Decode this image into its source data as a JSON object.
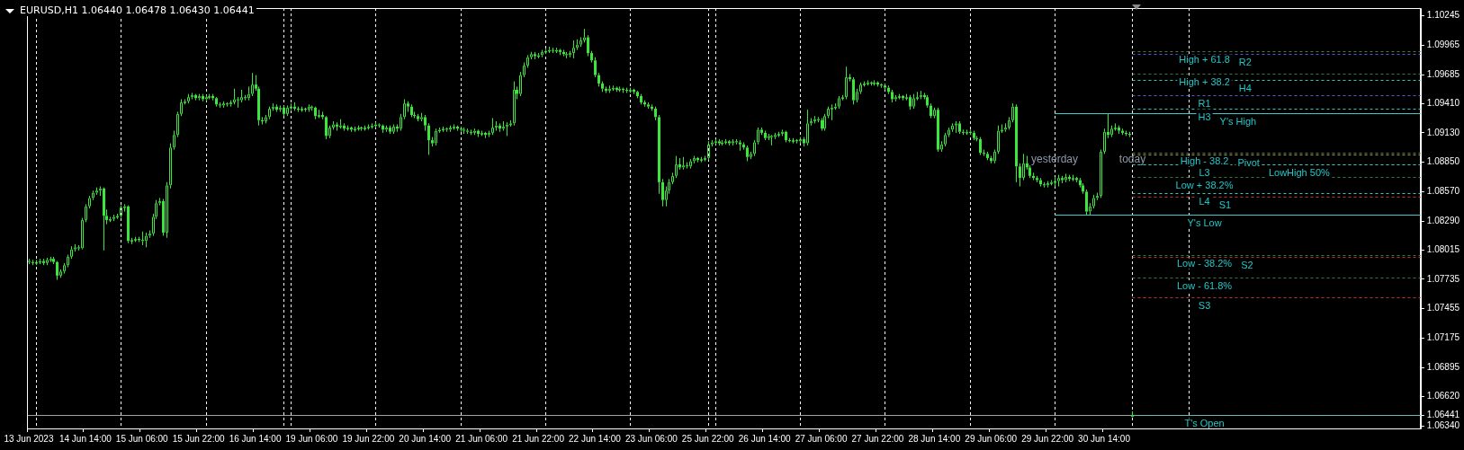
{
  "chart_data": {
    "type": "candlestick",
    "title": "EURUSD,H1 1.06440 1.06478 1.06430 1.06441",
    "color": "#3ce63c",
    "categories": [
      "13 Jun 2023",
      null,
      null,
      null,
      null,
      null,
      null,
      null,
      null,
      null,
      null,
      null,
      null,
      null,
      null,
      null,
      "14 Jun 14:00",
      null,
      null,
      null,
      null,
      null,
      null,
      null,
      null,
      null,
      null,
      null,
      null,
      null,
      null,
      null,
      "15 Jun 06:00",
      null,
      null,
      null,
      null,
      null,
      null,
      null,
      null,
      null,
      null,
      null,
      null,
      null,
      null,
      null,
      "15 Jun 22:00",
      null,
      null,
      null,
      null,
      null,
      null,
      null,
      null,
      null,
      null,
      null,
      null,
      null,
      null,
      null,
      "16 Jun 14:00",
      null,
      null,
      null,
      null,
      null,
      null,
      null,
      null,
      null,
      null,
      null,
      null,
      null,
      null,
      null,
      "19 Jun 06:00",
      null,
      null,
      null,
      null,
      null,
      null,
      null,
      null,
      null,
      null,
      null,
      null,
      null,
      null,
      null,
      "19 Jun 22:00",
      null,
      null,
      null,
      null,
      null,
      null,
      null,
      null,
      null,
      null,
      null,
      null,
      null,
      null,
      null,
      "20 Jun 14:00",
      null,
      null,
      null,
      null,
      null,
      null,
      null,
      null,
      null,
      null,
      null,
      null,
      null,
      null,
      null,
      "21 Jun 06:00",
      null,
      null,
      null,
      null,
      null,
      null,
      null,
      null,
      null,
      null,
      null,
      null,
      null,
      null,
      null,
      "21 Jun 22:00",
      null,
      null,
      null,
      null,
      null,
      null,
      null,
      null,
      null,
      null,
      null,
      null,
      null,
      null,
      null,
      "22 Jun 14:00",
      null,
      null,
      null,
      null,
      null,
      null,
      null,
      null,
      null,
      null,
      null,
      null,
      null,
      null,
      null,
      "23 Jun 06:00",
      null,
      null,
      null,
      null,
      null,
      null,
      null,
      null,
      null,
      null,
      null,
      null,
      null,
      null,
      null,
      "25 Jun 22:00",
      null,
      null,
      null,
      null,
      null,
      null,
      null,
      null,
      null,
      null,
      null,
      null,
      null,
      null,
      null,
      "26 Jun 14:00",
      null,
      null,
      null,
      null,
      null,
      null,
      null,
      null,
      null,
      null,
      null,
      null,
      null,
      null,
      null,
      "27 Jun 06:00",
      null,
      null,
      null,
      null,
      null,
      null,
      null,
      null,
      null,
      null,
      null,
      null,
      null,
      null,
      null,
      "27 Jun 22:00",
      null,
      null,
      null,
      null,
      null,
      null,
      null,
      null,
      null,
      null,
      null,
      null,
      null,
      null,
      null,
      "28 Jun 14:00",
      null,
      null,
      null,
      null,
      null,
      null,
      null,
      null,
      null,
      null,
      null,
      null,
      null,
      null,
      null,
      "29 Jun 06:00",
      null,
      null,
      null,
      null,
      null,
      null,
      null,
      null,
      null,
      null,
      null,
      null,
      null,
      null,
      null,
      "29 Jun 22:00",
      null,
      null,
      null,
      null,
      null,
      null,
      null,
      null,
      null,
      null,
      null,
      null,
      null,
      null,
      null,
      "30 Jun 14:00",
      null,
      null,
      null,
      null,
      null,
      null,
      null,
      null,
      null,
      null,
      null,
      null,
      null,
      null,
      null,
      null,
      null,
      null,
      null,
      null,
      null,
      null,
      null,
      null,
      null,
      null,
      null,
      null,
      null,
      null,
      null,
      null,
      null,
      null,
      null,
      null,
      null,
      null,
      null,
      null,
      null,
      null,
      null,
      null,
      null,
      null,
      null,
      null,
      null,
      null,
      null,
      null,
      null,
      null,
      null,
      null,
      null,
      null,
      null,
      null,
      null,
      null,
      null,
      null,
      null,
      null,
      null,
      null,
      null,
      null,
      null,
      null,
      null,
      null,
      null,
      null,
      null,
      null,
      null,
      null,
      null,
      null,
      null,
      null,
      null,
      null,
      null,
      null,
      null
    ],
    "ohlc": [
      [
        1.0791,
        1.0793,
        1.0788,
        1.079
      ],
      [
        1.079,
        1.0792,
        1.0787,
        1.0789
      ],
      [
        1.0789,
        1.0792,
        1.0787,
        1.079
      ],
      [
        1.079,
        1.0793,
        1.0788,
        1.0791
      ],
      [
        1.0791,
        1.0793,
        1.0787,
        1.0789
      ],
      [
        1.0789,
        1.0794,
        1.0787,
        1.0792
      ],
      [
        1.0792,
        1.0795,
        1.079,
        1.0793
      ],
      [
        1.0793,
        1.0795,
        1.0788,
        1.079
      ],
      [
        1.079,
        1.0791,
        1.0773,
        1.0777
      ],
      [
        1.0777,
        1.0783,
        1.0775,
        1.0781
      ],
      [
        1.0781,
        1.0789,
        1.0779,
        1.0787
      ],
      [
        1.0787,
        1.0797,
        1.0785,
        1.0795
      ],
      [
        1.0795,
        1.0805,
        1.0793,
        1.0802
      ],
      [
        1.0802,
        1.0807,
        1.08,
        1.0804
      ],
      [
        1.0804,
        1.0806,
        1.0801,
        1.0803
      ],
      [
        1.0803,
        1.0832,
        1.0802,
        1.083
      ],
      [
        1.083,
        1.0845,
        1.0828,
        1.0843
      ],
      [
        1.0843,
        1.0853,
        1.0841,
        1.0851
      ],
      [
        1.0851,
        1.0858,
        1.0849,
        1.0856
      ],
      [
        1.0856,
        1.0861,
        1.0854,
        1.0858
      ],
      [
        1.0858,
        1.0862,
        1.0853,
        1.086
      ],
      [
        1.086,
        1.0861,
        1.0801,
        1.0834
      ],
      [
        1.0834,
        1.084,
        1.0826,
        1.083
      ],
      [
        1.083,
        1.0833,
        1.0828,
        1.0831
      ],
      [
        1.0831,
        1.0835,
        1.0829,
        1.0833
      ],
      [
        1.0833,
        1.0836,
        1.0831,
        1.0834
      ],
      [
        1.0834,
        1.0844,
        1.0832,
        1.0842
      ],
      [
        1.0842,
        1.0845,
        1.0838,
        1.0843
      ],
      [
        1.0843,
        1.0844,
        1.0808,
        1.081
      ],
      [
        1.081,
        1.0813,
        1.0807,
        1.0811
      ],
      [
        1.0811,
        1.0814,
        1.0809,
        1.0812
      ],
      [
        1.0812,
        1.0814,
        1.0809,
        1.0811
      ],
      [
        1.0811,
        1.0819,
        1.0806,
        1.081
      ],
      [
        1.081,
        1.0818,
        1.0804,
        1.0815
      ],
      [
        1.0815,
        1.082,
        1.0813,
        1.0817
      ],
      [
        1.0817,
        1.0836,
        1.0815,
        1.0833
      ],
      [
        1.0833,
        1.0849,
        1.0831,
        1.0846
      ],
      [
        1.0846,
        1.0851,
        1.0844,
        1.0848
      ],
      [
        1.0848,
        1.085,
        1.0815,
        1.0818
      ],
      [
        1.0818,
        1.0866,
        1.0813,
        1.0863
      ],
      [
        1.0863,
        1.0903,
        1.086,
        1.0899
      ],
      [
        1.0899,
        1.0915,
        1.0897,
        1.0911
      ],
      [
        1.0911,
        1.0933,
        1.0909,
        1.0931
      ],
      [
        1.0931,
        1.0945,
        1.0929,
        1.0942
      ],
      [
        1.0942,
        1.0945,
        1.094,
        1.0943
      ],
      [
        1.0943,
        1.095,
        1.0941,
        1.0947
      ],
      [
        1.0947,
        1.0951,
        1.0945,
        1.0949
      ],
      [
        1.0949,
        1.095,
        1.0944,
        1.0946
      ],
      [
        1.0946,
        1.095,
        1.0944,
        1.0948
      ],
      [
        1.0948,
        1.095,
        1.0943,
        1.0945
      ],
      [
        1.0945,
        1.0949,
        1.0943,
        1.0947
      ],
      [
        1.0947,
        1.095,
        1.0945,
        1.0948
      ],
      [
        1.0948,
        1.095,
        1.0944,
        1.0946
      ],
      [
        1.0946,
        1.0947,
        1.0938,
        1.094
      ],
      [
        1.094,
        1.0942,
        1.0937,
        1.0939
      ],
      [
        1.0939,
        1.0943,
        1.0937,
        1.0941
      ],
      [
        1.0941,
        1.0942,
        1.0938,
        1.094
      ],
      [
        1.094,
        1.0944,
        1.0938,
        1.0942
      ],
      [
        1.0942,
        1.0955,
        1.094,
        1.0945
      ],
      [
        1.0945,
        1.0947,
        1.0937,
        1.0944
      ],
      [
        1.0944,
        1.0954,
        1.0942,
        1.0947
      ],
      [
        1.0947,
        1.0949,
        1.0944,
        1.0946
      ],
      [
        1.0946,
        1.0957,
        1.0944,
        1.095
      ],
      [
        1.095,
        1.097,
        1.0948,
        1.0959
      ],
      [
        1.0959,
        1.0968,
        1.0953,
        1.0955
      ],
      [
        1.0955,
        1.0957,
        1.092,
        1.0925
      ],
      [
        1.0925,
        1.0928,
        1.0921,
        1.0924
      ],
      [
        1.0924,
        1.093,
        1.0922,
        1.0928
      ],
      [
        1.0928,
        1.0938,
        1.0926,
        1.0936
      ],
      [
        1.0936,
        1.0941,
        1.0934,
        1.0938
      ],
      [
        1.0938,
        1.094,
        1.0933,
        1.0935
      ],
      [
        1.0935,
        1.0939,
        1.0933,
        1.0937
      ],
      [
        1.0937,
        1.0939,
        1.0929,
        1.0931
      ],
      [
        1.0931,
        1.0939,
        1.0929,
        1.0937
      ],
      [
        1.0937,
        1.0941,
        1.0935,
        1.0938
      ],
      [
        1.0938,
        1.0942,
        1.0934,
        1.0936
      ],
      [
        1.0936,
        1.0938,
        1.0933,
        1.0935
      ],
      [
        1.0935,
        1.0938,
        1.0933,
        1.0936
      ],
      [
        1.0936,
        1.0937,
        1.0933,
        1.0935
      ],
      [
        1.0935,
        1.094,
        1.0933,
        1.0938
      ],
      [
        1.0938,
        1.0939,
        1.0934,
        1.0937
      ],
      [
        1.0937,
        1.0938,
        1.0926,
        1.0929
      ],
      [
        1.0929,
        1.0935,
        1.0927,
        1.093
      ],
      [
        1.093,
        1.0933,
        1.0926,
        1.0928
      ],
      [
        1.0928,
        1.0929,
        1.0907,
        1.091
      ],
      [
        1.091,
        1.092,
        1.0908,
        1.0918
      ],
      [
        1.0918,
        1.0924,
        1.0916,
        1.0921
      ],
      [
        1.0921,
        1.0923,
        1.0915,
        1.0919
      ],
      [
        1.0919,
        1.0926,
        1.0917,
        1.092
      ],
      [
        1.092,
        1.0922,
        1.0915,
        1.0917
      ],
      [
        1.0917,
        1.092,
        1.0915,
        1.0918
      ],
      [
        1.0918,
        1.0919,
        1.0914,
        1.0916
      ],
      [
        1.0916,
        1.0919,
        1.0914,
        1.0917
      ],
      [
        1.0917,
        1.092,
        1.0915,
        1.0918
      ],
      [
        1.0918,
        1.0919,
        1.0915,
        1.0917
      ],
      [
        1.0917,
        1.092,
        1.0915,
        1.0918
      ],
      [
        1.0918,
        1.0921,
        1.0916,
        1.0919
      ],
      [
        1.0919,
        1.0922,
        1.0917,
        1.092
      ],
      [
        1.092,
        1.0923,
        1.0918,
        1.0921
      ],
      [
        1.0921,
        1.0922,
        1.0918,
        1.092
      ],
      [
        1.092,
        1.0921,
        1.0913,
        1.0916
      ],
      [
        1.0916,
        1.092,
        1.0914,
        1.0918
      ],
      [
        1.0918,
        1.092,
        1.0912,
        1.0914
      ],
      [
        1.0914,
        1.0921,
        1.0912,
        1.0919
      ],
      [
        1.0919,
        1.0921,
        1.0914,
        1.0917
      ],
      [
        1.0917,
        1.0931,
        1.0915,
        1.0928
      ],
      [
        1.0928,
        1.0945,
        1.0926,
        1.0941
      ],
      [
        1.0941,
        1.0943,
        1.0933,
        1.0938
      ],
      [
        1.0938,
        1.094,
        1.0928,
        1.093
      ],
      [
        1.093,
        1.0933,
        1.0927,
        1.0929
      ],
      [
        1.0929,
        1.0931,
        1.0924,
        1.0926
      ],
      [
        1.0926,
        1.0932,
        1.0924,
        1.0928
      ],
      [
        1.0928,
        1.093,
        1.0915,
        1.092
      ],
      [
        1.092,
        1.0922,
        1.0892,
        1.0906
      ],
      [
        1.0906,
        1.0909,
        1.09,
        1.0903
      ],
      [
        1.0903,
        1.0917,
        1.0901,
        1.0915
      ],
      [
        1.0915,
        1.0918,
        1.0913,
        1.0916
      ],
      [
        1.0916,
        1.0919,
        1.0914,
        1.0917
      ],
      [
        1.0917,
        1.0918,
        1.0914,
        1.0916
      ],
      [
        1.0916,
        1.092,
        1.0914,
        1.0918
      ],
      [
        1.0918,
        1.0921,
        1.0916,
        1.0919
      ],
      [
        1.0919,
        1.092,
        1.0915,
        1.0917
      ],
      [
        1.0917,
        1.0919,
        1.0914,
        1.0916
      ],
      [
        1.0916,
        1.0918,
        1.0912,
        1.0915
      ],
      [
        1.0915,
        1.0917,
        1.0912,
        1.0914
      ],
      [
        1.0914,
        1.0916,
        1.0911,
        1.0913
      ],
      [
        1.0913,
        1.0917,
        1.0911,
        1.0915
      ],
      [
        1.0915,
        1.0916,
        1.0909,
        1.0912
      ],
      [
        1.0912,
        1.0915,
        1.091,
        1.0913
      ],
      [
        1.0913,
        1.0914,
        1.0908,
        1.0911
      ],
      [
        1.0911,
        1.0915,
        1.0909,
        1.0913
      ],
      [
        1.0913,
        1.0927,
        1.0911,
        1.0918
      ],
      [
        1.0918,
        1.0924,
        1.0915,
        1.092
      ],
      [
        1.092,
        1.0922,
        1.0914,
        1.0917
      ],
      [
        1.0917,
        1.0924,
        1.0915,
        1.0919
      ],
      [
        1.0919,
        1.0923,
        1.091,
        1.0921
      ],
      [
        1.0921,
        1.0925,
        1.0919,
        1.0922
      ],
      [
        1.0922,
        1.0962,
        1.092,
        1.0954
      ],
      [
        1.0954,
        1.0957,
        1.0945,
        1.095
      ],
      [
        1.095,
        1.0971,
        1.0948,
        1.0968
      ],
      [
        1.0968,
        1.098,
        1.0966,
        1.0977
      ],
      [
        1.0977,
        1.0987,
        1.0975,
        1.0985
      ],
      [
        1.0985,
        1.099,
        1.0983,
        1.0988
      ],
      [
        1.0988,
        1.099,
        1.0983,
        1.0986
      ],
      [
        1.0986,
        1.0989,
        1.0984,
        1.0987
      ],
      [
        1.0987,
        1.0992,
        1.0985,
        1.099
      ],
      [
        1.099,
        1.0993,
        1.0988,
        1.0991
      ],
      [
        1.0991,
        1.0995,
        1.0989,
        1.0992
      ],
      [
        1.0992,
        1.0994,
        1.0989,
        1.0991
      ],
      [
        1.0991,
        1.0994,
        1.0989,
        1.0992
      ],
      [
        1.0992,
        1.0993,
        1.0987,
        1.099
      ],
      [
        1.099,
        1.0992,
        1.0986,
        1.0988
      ],
      [
        1.0988,
        1.099,
        1.0984,
        1.0987
      ],
      [
        1.0987,
        1.0991,
        1.0985,
        1.0989
      ],
      [
        1.0989,
        1.1001,
        1.0984,
        1.0994
      ],
      [
        1.0994,
        1.1002,
        1.0992,
        1.0997
      ],
      [
        1.0997,
        1.1004,
        1.0995,
        1.1001
      ],
      [
        1.1001,
        1.1012,
        1.0999,
        1.1004
      ],
      [
        1.1004,
        1.1006,
        1.0986,
        1.0989
      ],
      [
        1.0989,
        1.0991,
        1.098,
        1.0982
      ],
      [
        1.0982,
        1.0985,
        1.0966,
        1.0968
      ],
      [
        1.0968,
        1.097,
        1.0957,
        1.096
      ],
      [
        1.096,
        1.0962,
        1.0952,
        1.0955
      ],
      [
        1.0955,
        1.0957,
        1.0951,
        1.0953
      ],
      [
        1.0953,
        1.0958,
        1.0951,
        1.0955
      ],
      [
        1.0955,
        1.0958,
        1.0953,
        1.0956
      ],
      [
        1.0956,
        1.0957,
        1.0952,
        1.0954
      ],
      [
        1.0954,
        1.0957,
        1.0952,
        1.0955
      ],
      [
        1.0955,
        1.0956,
        1.0951,
        1.0954
      ],
      [
        1.0954,
        1.0956,
        1.0951,
        1.0953
      ],
      [
        1.0953,
        1.0956,
        1.0951,
        1.0954
      ],
      [
        1.0954,
        1.0955,
        1.095,
        1.0952
      ],
      [
        1.0952,
        1.0953,
        1.0946,
        1.0948
      ],
      [
        1.0948,
        1.095,
        1.094,
        1.0942
      ],
      [
        1.0942,
        1.0944,
        1.0938,
        1.094
      ],
      [
        1.094,
        1.0942,
        1.0936,
        1.0938
      ],
      [
        1.0938,
        1.094,
        1.0934,
        1.0936
      ],
      [
        1.0936,
        1.0938,
        1.0925,
        1.0928
      ],
      [
        1.0928,
        1.093,
        1.0855,
        1.0866
      ],
      [
        1.0866,
        1.0869,
        1.0843,
        1.0849
      ],
      [
        1.0849,
        1.0862,
        1.0843,
        1.0858
      ],
      [
        1.0858,
        1.0869,
        1.0855,
        1.0866
      ],
      [
        1.0866,
        1.0875,
        1.0864,
        1.0872
      ],
      [
        1.0872,
        1.0891,
        1.087,
        1.0883
      ],
      [
        1.0883,
        1.0889,
        1.0878,
        1.088
      ],
      [
        1.088,
        1.089,
        1.0878,
        1.0882
      ],
      [
        1.0882,
        1.0885,
        1.0879,
        1.0881
      ],
      [
        1.0881,
        1.0888,
        1.0879,
        1.0886
      ],
      [
        1.0886,
        1.0891,
        1.0884,
        1.0889
      ],
      [
        1.0889,
        1.089,
        1.0885,
        1.0887
      ],
      [
        1.0887,
        1.089,
        1.0885,
        1.0888
      ],
      [
        1.0888,
        1.0891,
        1.0886,
        1.0889
      ],
      [
        1.0889,
        1.0905,
        1.0887,
        1.0902
      ],
      [
        1.0902,
        1.0906,
        1.09,
        1.0904
      ],
      [
        1.0904,
        1.0907,
        1.0902,
        1.0905
      ],
      [
        1.0905,
        1.0907,
        1.0901,
        1.0903
      ],
      [
        1.0903,
        1.0906,
        1.0901,
        1.0904
      ],
      [
        1.0904,
        1.0907,
        1.0902,
        1.0905
      ],
      [
        1.0905,
        1.0906,
        1.0901,
        1.0903
      ],
      [
        1.0903,
        1.0907,
        1.0901,
        1.0905
      ],
      [
        1.0905,
        1.0907,
        1.0902,
        1.0904
      ],
      [
        1.0904,
        1.0906,
        1.0896,
        1.0902
      ],
      [
        1.0902,
        1.0904,
        1.0897,
        1.0899
      ],
      [
        1.0899,
        1.0901,
        1.0886,
        1.089
      ],
      [
        1.089,
        1.0895,
        1.0888,
        1.0893
      ],
      [
        1.0893,
        1.0906,
        1.0891,
        1.0904
      ],
      [
        1.0904,
        1.0918,
        1.0902,
        1.0916
      ],
      [
        1.0916,
        1.0918,
        1.0911,
        1.0913
      ],
      [
        1.0913,
        1.0915,
        1.0906,
        1.0908
      ],
      [
        1.0908,
        1.0912,
        1.0906,
        1.091
      ],
      [
        1.091,
        1.0911,
        1.0901,
        1.0909
      ],
      [
        1.0909,
        1.0913,
        1.0907,
        1.0911
      ],
      [
        1.0911,
        1.0914,
        1.0909,
        1.0912
      ],
      [
        1.0912,
        1.0916,
        1.091,
        1.0914
      ],
      [
        1.0914,
        1.0915,
        1.0904,
        1.0906
      ],
      [
        1.0906,
        1.0908,
        1.0904,
        1.0905
      ],
      [
        1.0905,
        1.0908,
        1.0903,
        1.0906
      ],
      [
        1.0906,
        1.0907,
        1.0903,
        1.0905
      ],
      [
        1.0905,
        1.0909,
        1.0903,
        1.0907
      ],
      [
        1.0907,
        1.0909,
        1.09,
        1.0903
      ],
      [
        1.0903,
        1.0935,
        1.0901,
        1.0922
      ],
      [
        1.0922,
        1.0927,
        1.092,
        1.0924
      ],
      [
        1.0924,
        1.0929,
        1.0922,
        1.0926
      ],
      [
        1.0926,
        1.0928,
        1.0923,
        1.0925
      ],
      [
        1.0925,
        1.0927,
        1.0915,
        1.0917
      ],
      [
        1.0917,
        1.0931,
        1.0915,
        1.0929
      ],
      [
        1.0929,
        1.0938,
        1.0927,
        1.0936
      ],
      [
        1.0936,
        1.094,
        1.0925,
        1.0937
      ],
      [
        1.0937,
        1.0941,
        1.0935,
        1.0938
      ],
      [
        1.0938,
        1.0948,
        1.0936,
        1.0946
      ],
      [
        1.0946,
        1.0949,
        1.0944,
        1.0947
      ],
      [
        1.0947,
        1.0976,
        1.0945,
        1.0966
      ],
      [
        1.0966,
        1.0969,
        1.0962,
        1.0964
      ],
      [
        1.0964,
        1.0966,
        1.094,
        1.0944
      ],
      [
        1.0944,
        1.0955,
        1.0942,
        1.0952
      ],
      [
        1.0952,
        1.0961,
        1.095,
        1.0959
      ],
      [
        1.0959,
        1.0962,
        1.0957,
        1.096
      ],
      [
        1.096,
        1.0963,
        1.0958,
        1.0961
      ],
      [
        1.0961,
        1.0962,
        1.0958,
        1.096
      ],
      [
        1.096,
        1.0963,
        1.0958,
        1.0961
      ],
      [
        1.0961,
        1.0962,
        1.0957,
        1.0959
      ],
      [
        1.0959,
        1.096,
        1.0956,
        1.0958
      ],
      [
        1.0958,
        1.096,
        1.0954,
        1.0956
      ],
      [
        1.0956,
        1.0958,
        1.095,
        1.0952
      ],
      [
        1.0952,
        1.0954,
        1.0942,
        1.0945
      ],
      [
        1.0945,
        1.0949,
        1.0943,
        1.0947
      ],
      [
        1.0947,
        1.095,
        1.0945,
        1.0948
      ],
      [
        1.0948,
        1.0949,
        1.0944,
        1.0946
      ],
      [
        1.0946,
        1.095,
        1.0944,
        1.0947
      ],
      [
        1.0947,
        1.0949,
        1.0935,
        1.0938
      ],
      [
        1.0938,
        1.095,
        1.0936,
        1.0946
      ],
      [
        1.0946,
        1.0952,
        1.0944,
        1.0947
      ],
      [
        1.0947,
        1.0953,
        1.0945,
        1.0949
      ],
      [
        1.0949,
        1.0951,
        1.0945,
        1.0947
      ],
      [
        1.0947,
        1.0949,
        1.0937,
        1.0939
      ],
      [
        1.0939,
        1.0941,
        1.0927,
        1.0929
      ],
      [
        1.0929,
        1.0937,
        1.0927,
        1.0935
      ],
      [
        1.0935,
        1.0937,
        1.0895,
        1.0897
      ],
      [
        1.0897,
        1.0905,
        1.0895,
        1.0902
      ],
      [
        1.0902,
        1.0913,
        1.09,
        1.0911
      ],
      [
        1.0911,
        1.0918,
        1.0909,
        1.0916
      ],
      [
        1.0916,
        1.0922,
        1.0914,
        1.092
      ],
      [
        1.092,
        1.0924,
        1.0913,
        1.0922
      ],
      [
        1.0922,
        1.0924,
        1.0912,
        1.0914
      ],
      [
        1.0914,
        1.0916,
        1.0911,
        1.0913
      ],
      [
        1.0913,
        1.0916,
        1.0911,
        1.0914
      ],
      [
        1.0914,
        1.0916,
        1.0911,
        1.0913
      ],
      [
        1.0913,
        1.0915,
        1.0906,
        1.0908
      ],
      [
        1.0908,
        1.091,
        1.0905,
        1.0907
      ],
      [
        1.0907,
        1.0909,
        1.0892,
        1.0894
      ],
      [
        1.0894,
        1.0897,
        1.0891,
        1.0893
      ],
      [
        1.0893,
        1.0895,
        1.0887,
        1.0889
      ],
      [
        1.0889,
        1.0891,
        1.0884,
        1.0886
      ],
      [
        1.0886,
        1.0897,
        1.0884,
        1.0895
      ],
      [
        1.0895,
        1.092,
        1.0893,
        1.0915
      ],
      [
        1.0915,
        1.0921,
        1.0913,
        1.0916
      ],
      [
        1.0916,
        1.0922,
        1.0914,
        1.0918
      ],
      [
        1.0918,
        1.0928,
        1.0916,
        1.0925
      ],
      [
        1.0925,
        1.0941,
        1.0923,
        1.0938
      ],
      [
        1.0938,
        1.094,
        1.0866,
        1.0881
      ],
      [
        1.0881,
        1.0884,
        1.0862,
        1.087
      ],
      [
        1.087,
        1.0893,
        1.0868,
        1.0884
      ],
      [
        1.0884,
        1.0891,
        1.0878,
        1.088
      ],
      [
        1.088,
        1.0882,
        1.087,
        1.0872
      ],
      [
        1.0872,
        1.0875,
        1.0868,
        1.087
      ],
      [
        1.087,
        1.0872,
        1.0866,
        1.0868
      ],
      [
        1.0868,
        1.087,
        1.0862,
        1.0864
      ],
      [
        1.0864,
        1.0866,
        1.0861,
        1.0863
      ],
      [
        1.0863,
        1.0867,
        1.0861,
        1.0865
      ],
      [
        1.0865,
        1.0868,
        1.0863,
        1.0866
      ],
      [
        1.0866,
        1.0871,
        1.0862,
        1.0867
      ],
      [
        1.0867,
        1.0873,
        1.0862,
        1.087
      ],
      [
        1.087,
        1.0872,
        1.0865,
        1.0868
      ],
      [
        1.0868,
        1.0874,
        1.0866,
        1.0871
      ],
      [
        1.0871,
        1.0873,
        1.0867,
        1.0869
      ],
      [
        1.0869,
        1.0873,
        1.0867,
        1.087
      ],
      [
        1.087,
        1.0871,
        1.0866,
        1.0868
      ],
      [
        1.0868,
        1.087,
        1.0861,
        1.0863
      ],
      [
        1.0863,
        1.0865,
        1.0855,
        1.0857
      ],
      [
        1.0857,
        1.0859,
        1.0835,
        1.0838
      ],
      [
        1.0838,
        1.0846,
        1.0835,
        1.0843
      ],
      [
        1.0843,
        1.0854,
        1.0841,
        1.0851
      ],
      [
        1.0851,
        1.0856,
        1.0849,
        1.0853
      ],
      [
        1.0853,
        1.0897,
        1.0851,
        1.0895
      ],
      [
        1.0895,
        1.0917,
        1.0893,
        1.0914
      ],
      [
        1.0914,
        1.0931,
        1.0908,
        1.0911
      ],
      [
        1.0911,
        1.092,
        1.0909,
        1.0917
      ],
      [
        1.0917,
        1.0922,
        1.0915,
        1.0918
      ],
      [
        1.0918,
        1.092,
        1.0912,
        1.0915
      ],
      [
        1.0915,
        1.0917,
        1.0911,
        1.0913
      ],
      [
        1.0913,
        1.0915,
        1.091,
        1.0912
      ],
      [
        1.0912,
        1.0914,
        1.0909,
        1.0911
      ],
      [
        1.0644,
        1.06478,
        1.0643,
        1.06441
      ],
      null,
      null,
      null,
      null,
      null,
      null,
      null,
      null,
      null,
      null,
      null,
      null,
      null,
      null,
      null,
      null,
      null,
      null,
      null,
      null,
      null,
      null,
      null,
      null,
      null,
      null,
      null,
      null,
      null,
      null,
      null,
      null,
      null,
      null,
      null,
      null,
      null,
      null,
      null,
      null,
      null,
      null,
      null,
      null,
      null,
      null,
      null,
      null,
      null,
      null,
      null,
      null,
      null,
      null,
      null,
      null,
      null,
      null,
      null,
      null,
      null,
      null,
      null,
      null,
      null,
      null,
      null,
      null,
      null,
      null,
      null,
      null,
      null,
      null,
      null,
      null,
      null,
      null,
      null,
      null,
      null
    ],
    "annotations": [
      "yesterday",
      "today"
    ],
    "ylim": [
      1.06315,
      1.10318
    ],
    "yticks": [
      {
        "value": 1.0634,
        "label": "1.06340"
      },
      1.06441,
      {
        "value": 1.0662,
        "label": "1.06620"
      },
      1.06895,
      1.07175,
      1.07455,
      1.07735,
      1.08015,
      {
        "value": 1.0829,
        "label": "1.08290"
      },
      {
        "value": 1.0857,
        "label": "1.08570"
      },
      {
        "value": 1.0885,
        "label": "1.08850"
      },
      {
        "value": 1.0913,
        "label": "1.09130"
      },
      {
        "value": 1.0941,
        "label": "1.09410"
      },
      1.09685,
      1.09965,
      1.10245
    ],
    "ref_lines": [
      {
        "axis": "y",
        "value": 1.06441,
        "color": "#a0a0a0",
        "line_style": "solid"
      },
      {
        "axis": "y",
        "value": 1.0991,
        "label": "High + 61.8",
        "color": "#3c7a3c",
        "line_style": "dashed"
      },
      {
        "axis": "y",
        "value": 1.0988,
        "label": "R2",
        "color": "#5a5ad0",
        "line_style": "dashed"
      },
      {
        "axis": "y",
        "value": 1.0969,
        "label": "High + 38.2",
        "color": "#3c7a3c",
        "line_style": "dashed"
      },
      {
        "axis": "y",
        "value": 1.0963,
        "label": "H4",
        "color": "#2ec8c8",
        "line_style": "dashed"
      },
      {
        "axis": "y",
        "value": 1.0949,
        "label": "R1",
        "color": "#5a5ad0",
        "line_style": "dashed"
      },
      {
        "axis": "y",
        "value": 1.0936,
        "label": "H3",
        "color": "#2ec8c8",
        "line_style": "dashed"
      },
      {
        "axis": "y",
        "value": 1.0932,
        "label": "Y's High",
        "color": "#40c8c8",
        "line_style": "solid"
      },
      {
        "axis": "y",
        "value": 1.0894,
        "label": "High - 38.2",
        "color": "#6a7a30",
        "line_style": "dashed"
      },
      {
        "axis": "y",
        "value": 1.0892,
        "label": "Pivot",
        "color": "#a0a040",
        "line_style": "dashed"
      },
      {
        "axis": "y",
        "value": 1.0883,
        "label": "LowHigh 50%",
        "color": "#3c7a3c",
        "line_style": "dashed"
      },
      {
        "axis": "y",
        "value": 1.0883,
        "label": "L3",
        "color": "#2ec8c8",
        "line_style": "dashed"
      },
      {
        "axis": "y",
        "value": 1.0871,
        "label": "Low + 38.2%",
        "color": "#3c7a3c",
        "line_style": "dashed"
      },
      {
        "axis": "y",
        "value": 1.0856,
        "label": "L4",
        "color": "#2ec8c8",
        "line_style": "dashed"
      },
      {
        "axis": "y",
        "value": 1.0852,
        "label": "S1",
        "color": "#c03030",
        "line_style": "dashed"
      },
      {
        "axis": "y",
        "value": 1.0835,
        "label": "Y's Low",
        "color": "#40c8c8",
        "line_style": "solid"
      },
      {
        "axis": "y",
        "value": 1.0797,
        "label": "Low - 38.2%",
        "color": "#3c7a3c",
        "line_style": "dashed"
      },
      {
        "axis": "y",
        "value": 1.0795,
        "label": "S2",
        "color": "#c03030",
        "line_style": "dashed"
      },
      {
        "axis": "y",
        "value": 1.0775,
        "label": "Low - 61.8%",
        "color": "#3c7a3c",
        "line_style": "dashed"
      },
      {
        "axis": "y",
        "value": 1.0756,
        "label": "S3",
        "color": "#c03030",
        "line_style": "dashed"
      },
      {
        "axis": "y",
        "value": 1.06441,
        "label": "T's Open",
        "color": "#40c8c8",
        "line_style": "dashed"
      }
    ]
  }
}
